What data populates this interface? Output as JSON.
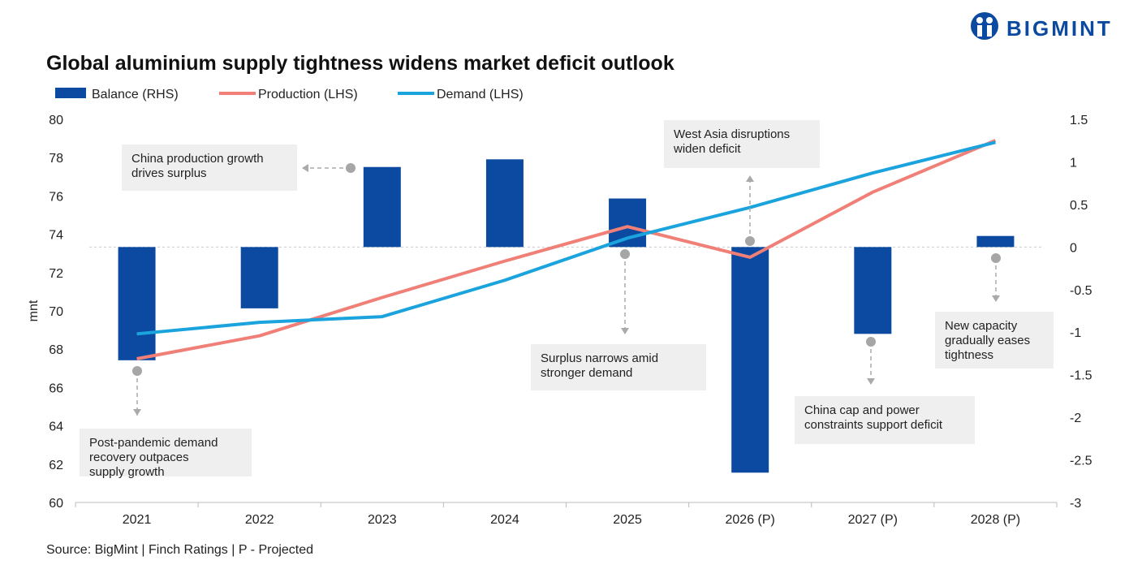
{
  "logo": "BIGMINT",
  "chart_data": {
    "type": "bar-line",
    "title": "Global aluminium supply tightness widens market deficit outlook",
    "y_label": "mnt",
    "source": "Source: BigMint | Finch Ratings | P - Projected",
    "categories": [
      "2021",
      "2022",
      "2023",
      "2024",
      "2025",
      "2026 (P)",
      "2027 (P)",
      "2028 (P)"
    ],
    "series": [
      {
        "name": "Balance (RHS)",
        "type": "bar",
        "axis": "y2",
        "color": "#0b4aa0",
        "values": [
          -1.33,
          -0.72,
          0.94,
          1.03,
          0.57,
          -2.65,
          -1.02,
          0.13
        ]
      },
      {
        "name": "Production (LHS)",
        "type": "line",
        "color": "#f07f78",
        "values": [
          67.5,
          68.7,
          70.7,
          72.6,
          74.4,
          72.8,
          76.2,
          78.9
        ]
      },
      {
        "name": "Demand (LHS)",
        "type": "line",
        "color": "#1ba3dd",
        "values": [
          68.8,
          69.4,
          69.7,
          71.6,
          73.8,
          75.4,
          77.2,
          78.8
        ]
      }
    ],
    "ylim": [
      60,
      80
    ],
    "yticks": [
      60,
      62,
      64,
      66,
      68,
      70,
      72,
      74,
      76,
      78,
      80
    ],
    "y2lim": [
      -3,
      1.5
    ],
    "y2ticks": [
      -3,
      -2.5,
      -2,
      -1.5,
      -1,
      -0.5,
      0,
      0.5,
      1,
      1.5
    ],
    "annotations": [
      {
        "lines": [
          "Post-pandemic demand",
          "recovery outpaces",
          "supply growth"
        ]
      },
      {
        "lines": [
          "China production growth",
          "drives surplus"
        ]
      },
      {
        "lines": [
          "Surplus narrows amid",
          "stronger demand"
        ]
      },
      {
        "lines": [
          "West Asia disruptions",
          "widen deficit"
        ]
      },
      {
        "lines": [
          "China cap and power",
          "constraints support deficit"
        ]
      },
      {
        "lines": [
          "New capacity",
          "gradually eases",
          "tightness"
        ]
      }
    ]
  }
}
